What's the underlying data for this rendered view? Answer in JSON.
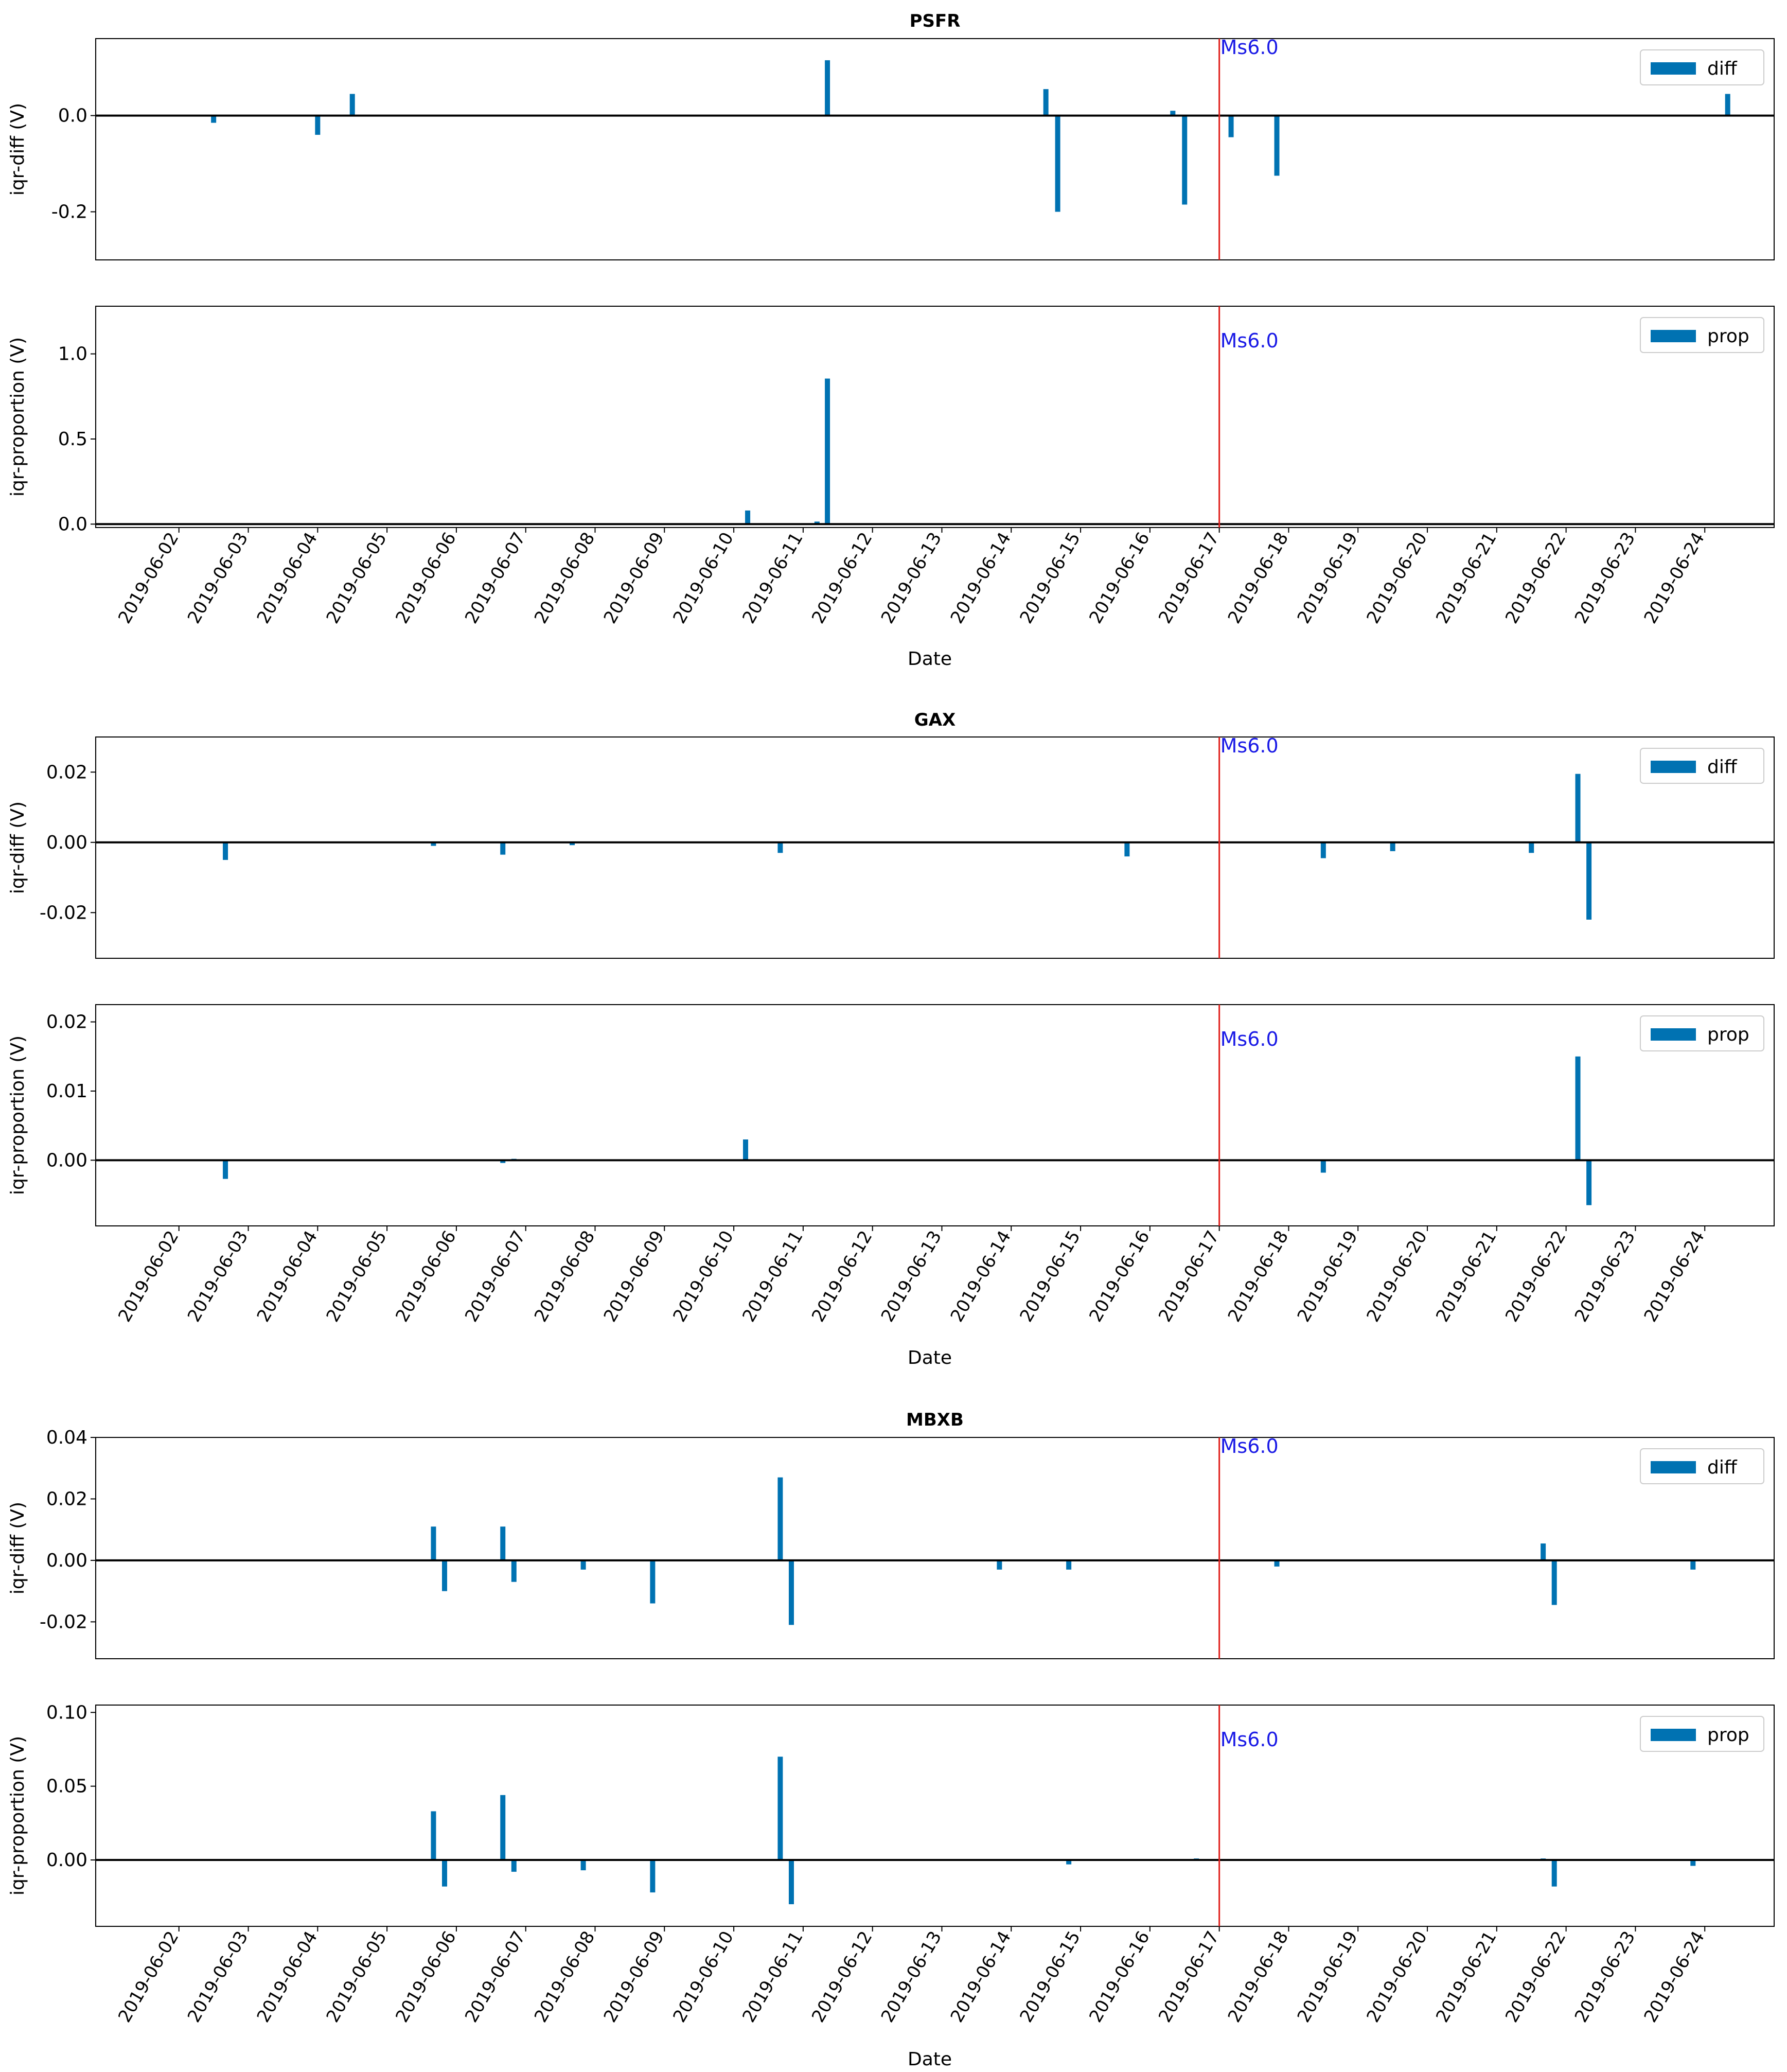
{
  "chart_data": {
    "type": "bar",
    "date_ticks": [
      "2019-06-02",
      "2019-06-03",
      "2019-06-04",
      "2019-06-05",
      "2019-06-06",
      "2019-06-07",
      "2019-06-08",
      "2019-06-09",
      "2019-06-10",
      "2019-06-11",
      "2019-06-12",
      "2019-06-13",
      "2019-06-14",
      "2019-06-15",
      "2019-06-16",
      "2019-06-17",
      "2019-06-18",
      "2019-06-19",
      "2019-06-20",
      "2019-06-21",
      "2019-06-22",
      "2019-06-23",
      "2019-06-24"
    ],
    "xlabel": "Date",
    "xlim_days": [
      -1.2,
      23.0
    ],
    "colors": {
      "bar": "#0072b2",
      "event_line": "#e0201c",
      "event_text": "#1a1ae6",
      "zero_line": "#000000"
    },
    "stations": [
      {
        "title": "PSFR",
        "event_day": 15.0,
        "panels": [
          {
            "ylabel": "iqr-diff (V)",
            "legend": "diff",
            "annotation": "Ms6.0",
            "ylim": [
              -0.3,
              0.16
            ],
            "yticks": [
              0.0,
              -0.2
            ],
            "ytick_labels": [
              "0.0",
              "-0.2"
            ],
            "bars": [
              [
                0.5,
                -0.015
              ],
              [
                2.0,
                -0.04
              ],
              [
                2.5,
                0.045
              ],
              [
                9.35,
                0.115
              ],
              [
                12.5,
                0.055
              ],
              [
                12.67,
                -0.2
              ],
              [
                14.33,
                0.01
              ],
              [
                14.5,
                -0.185
              ],
              [
                15.17,
                -0.045
              ],
              [
                15.83,
                -0.125
              ],
              [
                22.33,
                0.045
              ]
            ]
          },
          {
            "ylabel": "iqr-proportion (V)",
            "legend": "prop",
            "annotation": "Ms6.0",
            "ylim": [
              -0.02,
              1.28
            ],
            "yticks": [
              0.0,
              0.5,
              1.0
            ],
            "ytick_labels": [
              "0.0",
              "0.5",
              "1.0"
            ],
            "bars": [
              [
                8.2,
                0.08
              ],
              [
                9.2,
                0.015
              ],
              [
                9.35,
                0.855
              ]
            ]
          }
        ]
      },
      {
        "title": "GAX",
        "event_day": 15.0,
        "panels": [
          {
            "ylabel": "iqr-diff (V)",
            "legend": "diff",
            "annotation": "Ms6.0",
            "ylim": [
              -0.033,
              0.03
            ],
            "yticks": [
              0.02,
              0.0,
              -0.02
            ],
            "ytick_labels": [
              "0.02",
              "0.00",
              "-0.02"
            ],
            "bars": [
              [
                0.67,
                -0.005
              ],
              [
                3.67,
                -0.001
              ],
              [
                4.67,
                -0.0035
              ],
              [
                5.67,
                -0.0008
              ],
              [
                8.67,
                -0.003
              ],
              [
                13.67,
                -0.004
              ],
              [
                16.5,
                -0.0045
              ],
              [
                17.5,
                -0.0025
              ],
              [
                19.5,
                -0.003
              ],
              [
                20.17,
                0.0195
              ],
              [
                20.33,
                -0.022
              ]
            ]
          },
          {
            "ylabel": "iqr-proportion (V)",
            "legend": "prop",
            "annotation": "Ms6.0",
            "ylim": [
              -0.0095,
              0.0225
            ],
            "yticks": [
              0.02,
              0.01,
              0.0
            ],
            "ytick_labels": [
              "0.02",
              "0.01",
              "0.00"
            ],
            "bars": [
              [
                0.67,
                -0.0027
              ],
              [
                4.67,
                -0.0004
              ],
              [
                4.83,
                0.0002
              ],
              [
                8.17,
                0.003
              ],
              [
                16.5,
                -0.0018
              ],
              [
                20.17,
                0.015
              ],
              [
                20.33,
                -0.0065
              ]
            ]
          }
        ]
      },
      {
        "title": "MBXB",
        "event_day": 15.0,
        "panels": [
          {
            "ylabel": "iqr-diff (V)",
            "legend": "diff",
            "annotation": "Ms6.0",
            "ylim": [
              -0.032,
              0.04
            ],
            "yticks": [
              0.04,
              0.02,
              0.0,
              -0.02
            ],
            "ytick_labels": [
              "0.04",
              "0.02",
              "0.00",
              "-0.02"
            ],
            "bars": [
              [
                3.67,
                0.011
              ],
              [
                3.83,
                -0.01
              ],
              [
                4.67,
                0.011
              ],
              [
                4.83,
                -0.007
              ],
              [
                5.83,
                -0.003
              ],
              [
                6.83,
                -0.014
              ],
              [
                8.67,
                0.027
              ],
              [
                8.83,
                -0.021
              ],
              [
                11.83,
                -0.003
              ],
              [
                12.83,
                -0.003
              ],
              [
                15.83,
                -0.002
              ],
              [
                19.67,
                0.0055
              ],
              [
                19.83,
                -0.0145
              ],
              [
                21.83,
                -0.003
              ]
            ]
          },
          {
            "ylabel": "iqr-proportion (V)",
            "legend": "prop",
            "annotation": "Ms6.0",
            "ylim": [
              -0.045,
              0.105
            ],
            "yticks": [
              0.1,
              0.05,
              0.0
            ],
            "ytick_labels": [
              "0.10",
              "0.05",
              "0.00"
            ],
            "bars": [
              [
                3.67,
                0.033
              ],
              [
                3.83,
                -0.018
              ],
              [
                4.67,
                0.044
              ],
              [
                4.83,
                -0.008
              ],
              [
                5.83,
                -0.007
              ],
              [
                6.83,
                -0.022
              ],
              [
                8.67,
                0.07
              ],
              [
                8.83,
                -0.03
              ],
              [
                12.83,
                -0.003
              ],
              [
                14.67,
                0.001
              ],
              [
                19.67,
                0.001
              ],
              [
                19.83,
                -0.018
              ],
              [
                21.83,
                -0.004
              ]
            ]
          }
        ]
      }
    ]
  }
}
